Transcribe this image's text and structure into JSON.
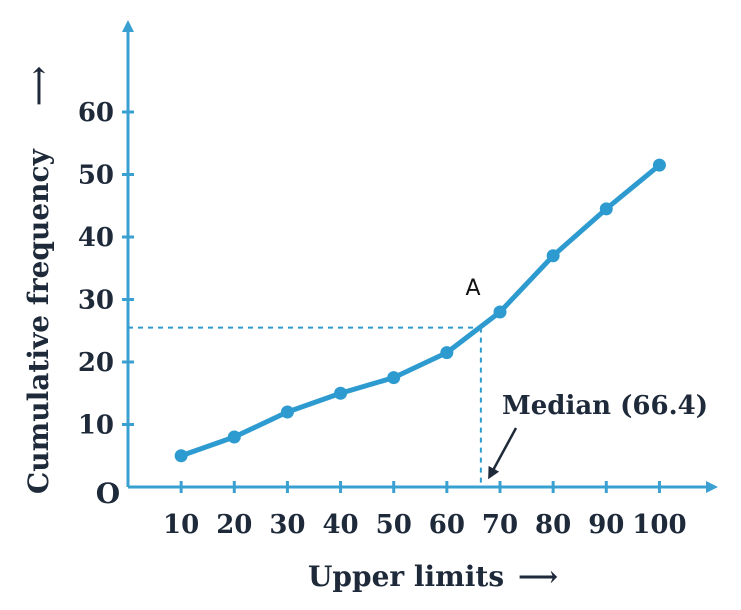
{
  "colors": {
    "axis": "#3aa0d2",
    "series": "#2e9bd0",
    "guide": "#2e9bd0",
    "text": "#1e2a3a"
  },
  "chart_data": {
    "type": "line",
    "title": "",
    "xlabel": "Upper limits",
    "xlabel_arrow": "⟶",
    "ylabel": "Cumulative frequency",
    "ylabel_arrow": "⟶",
    "origin_label": "O",
    "xlim": [
      0,
      105
    ],
    "ylim": [
      0,
      68
    ],
    "x_ticks": [
      10,
      20,
      30,
      40,
      50,
      60,
      70,
      80,
      90,
      100
    ],
    "y_ticks": [
      10,
      20,
      30,
      40,
      50,
      60
    ],
    "grid": false,
    "series": [
      {
        "x": [
          10,
          20,
          30,
          40,
          50,
          60,
          70,
          80,
          90,
          100
        ],
        "y": [
          5,
          8,
          12,
          15,
          17.5,
          21.5,
          28,
          37,
          44.5,
          51.5
        ]
      }
    ],
    "annotations": {
      "point_label": "A",
      "point": {
        "x": 66.4,
        "y": 25.5
      },
      "median_label": "Median (66.4)"
    }
  }
}
